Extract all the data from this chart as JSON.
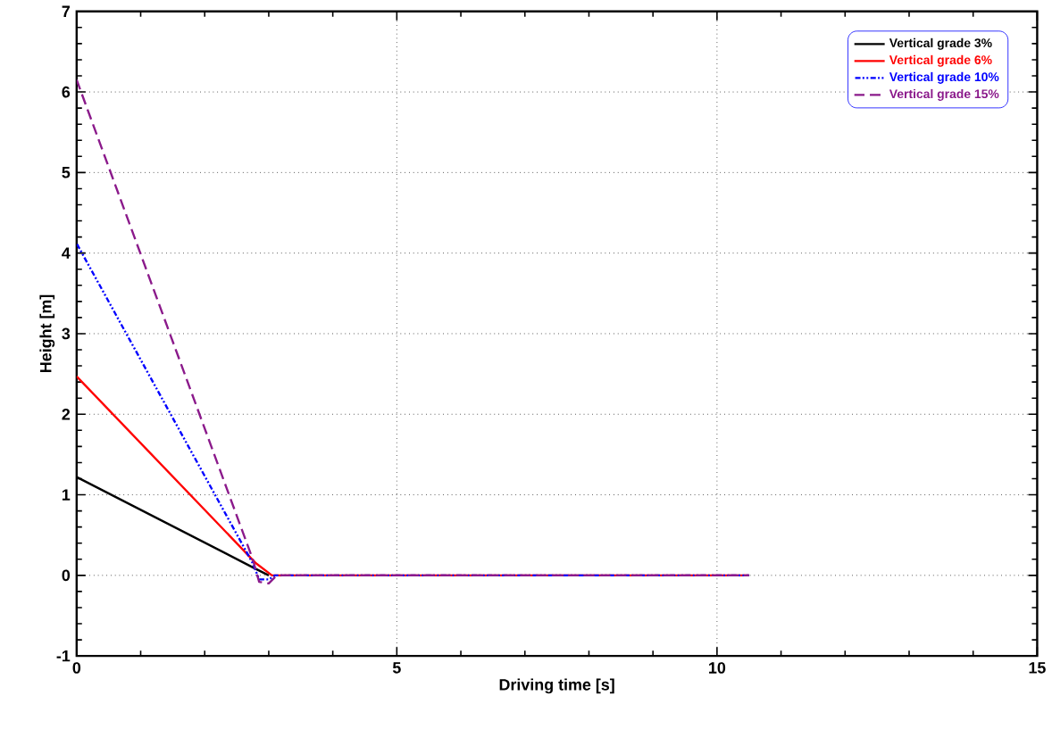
{
  "chart_data": {
    "type": "line",
    "xlabel": "Driving time [s]",
    "ylabel": "Height [m]",
    "xlim": [
      0,
      15
    ],
    "ylim": [
      -1,
      7
    ],
    "xticks": [
      0,
      5,
      10,
      15
    ],
    "yticks": [
      -1,
      0,
      1,
      2,
      3,
      4,
      5,
      6,
      7
    ],
    "grid": true,
    "legend": "top right",
    "series": [
      {
        "name": "Vertical grade 3%",
        "color": "#000000",
        "line_style": "solid",
        "x": [
          0,
          2.75,
          3.0
        ],
        "values": [
          1.22,
          0.1,
          0
        ]
      },
      {
        "name": "Vertical grade 6%",
        "color": "#ff0000",
        "line_style": "solid",
        "x": [
          0,
          2.8,
          3.05,
          10.5
        ],
        "values": [
          2.47,
          0.15,
          0,
          0
        ]
      },
      {
        "name": "Vertical grade 10%",
        "color": "#0000ff",
        "line_style": "dashdot",
        "x": [
          0,
          2.75,
          2.85,
          3.0,
          3.1,
          10.5
        ],
        "values": [
          4.12,
          0.15,
          -0.05,
          -0.05,
          0,
          0
        ]
      },
      {
        "name": "Vertical grade 15%",
        "color": "#8b1a8b",
        "line_style": "dashed",
        "x": [
          0,
          2.75,
          2.85,
          3.0,
          3.1,
          3.2,
          10.5
        ],
        "values": [
          6.15,
          0.2,
          -0.08,
          -0.1,
          -0.02,
          0,
          0
        ]
      }
    ]
  }
}
